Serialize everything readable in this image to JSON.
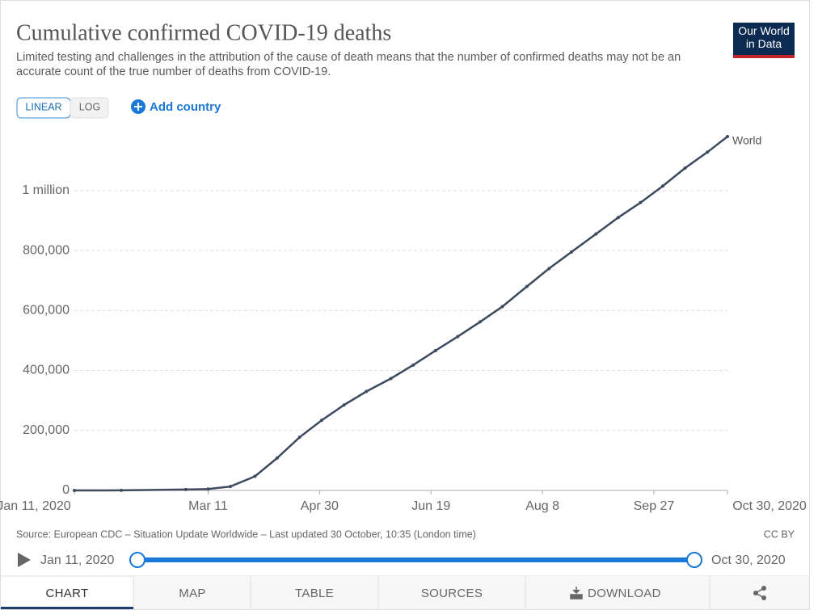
{
  "logo": "Our World in Data",
  "controls": {
    "linear": "LINEAR",
    "log": "LOG",
    "add_country": "Add country"
  },
  "footer": {
    "source": "Source: European CDC – Situation Update Worldwide – Last updated 30 October, 10:35 (London time)",
    "license": "CC BY"
  },
  "timeline": {
    "start": "Jan 11, 2020",
    "end": "Oct 30, 2020"
  },
  "tabs": [
    "CHART",
    "MAP",
    "TABLE",
    "SOURCES",
    "DOWNLOAD"
  ],
  "chart_data": {
    "type": "line",
    "title": "Cumulative confirmed COVID-19 deaths",
    "subtitle": "Limited testing and challenges in the attribution of the cause of death means that the number of confirmed deaths may not be an accurate count of the true number of deaths from COVID-19.",
    "x": [
      "2020-01-11",
      "2020-02-01",
      "2020-03-01",
      "2020-03-11",
      "2020-03-21",
      "2020-04-01",
      "2020-04-11",
      "2020-04-21",
      "2020-05-01",
      "2020-05-11",
      "2020-05-21",
      "2020-06-01",
      "2020-06-11",
      "2020-06-21",
      "2020-07-01",
      "2020-07-11",
      "2020-07-21",
      "2020-08-01",
      "2020-08-11",
      "2020-08-21",
      "2020-09-01",
      "2020-09-11",
      "2020-09-21",
      "2020-10-01",
      "2020-10-11",
      "2020-10-21",
      "2020-10-30"
    ],
    "series": [
      {
        "name": "World",
        "color": "#3d4a5e",
        "values": [
          1,
          259,
          3000,
          4600,
          13000,
          47000,
          108000,
          177000,
          234000,
          285000,
          330000,
          373000,
          418000,
          466000,
          513000,
          562000,
          613000,
          680000,
          740000,
          795000,
          855000,
          910000,
          960000,
          1015000,
          1075000,
          1128000,
          1180000
        ]
      }
    ],
    "xlim": [
      "2020-01-11",
      "2020-10-30"
    ],
    "xticks": [
      {
        "value": "2020-01-11",
        "label": "Jan 11, 2020"
      },
      {
        "value": "2020-03-11",
        "label": "Mar 11"
      },
      {
        "value": "2020-04-30",
        "label": "Apr 30"
      },
      {
        "value": "2020-06-19",
        "label": "Jun 19"
      },
      {
        "value": "2020-08-08",
        "label": "Aug 8"
      },
      {
        "value": "2020-09-27",
        "label": "Sep 27"
      },
      {
        "value": "2020-10-30",
        "label": "Oct 30, 2020"
      }
    ],
    "ylim": [
      0,
      1180000
    ],
    "yticks": [
      0,
      {
        "value": 200000,
        "label": "200,000"
      },
      {
        "value": 400000,
        "label": "400,000"
      },
      {
        "value": 600000,
        "label": "600,000"
      },
      {
        "value": 800000,
        "label": "800,000"
      },
      {
        "value": 1000000,
        "label": "1 million"
      }
    ],
    "grid": true,
    "log_scale": false
  }
}
